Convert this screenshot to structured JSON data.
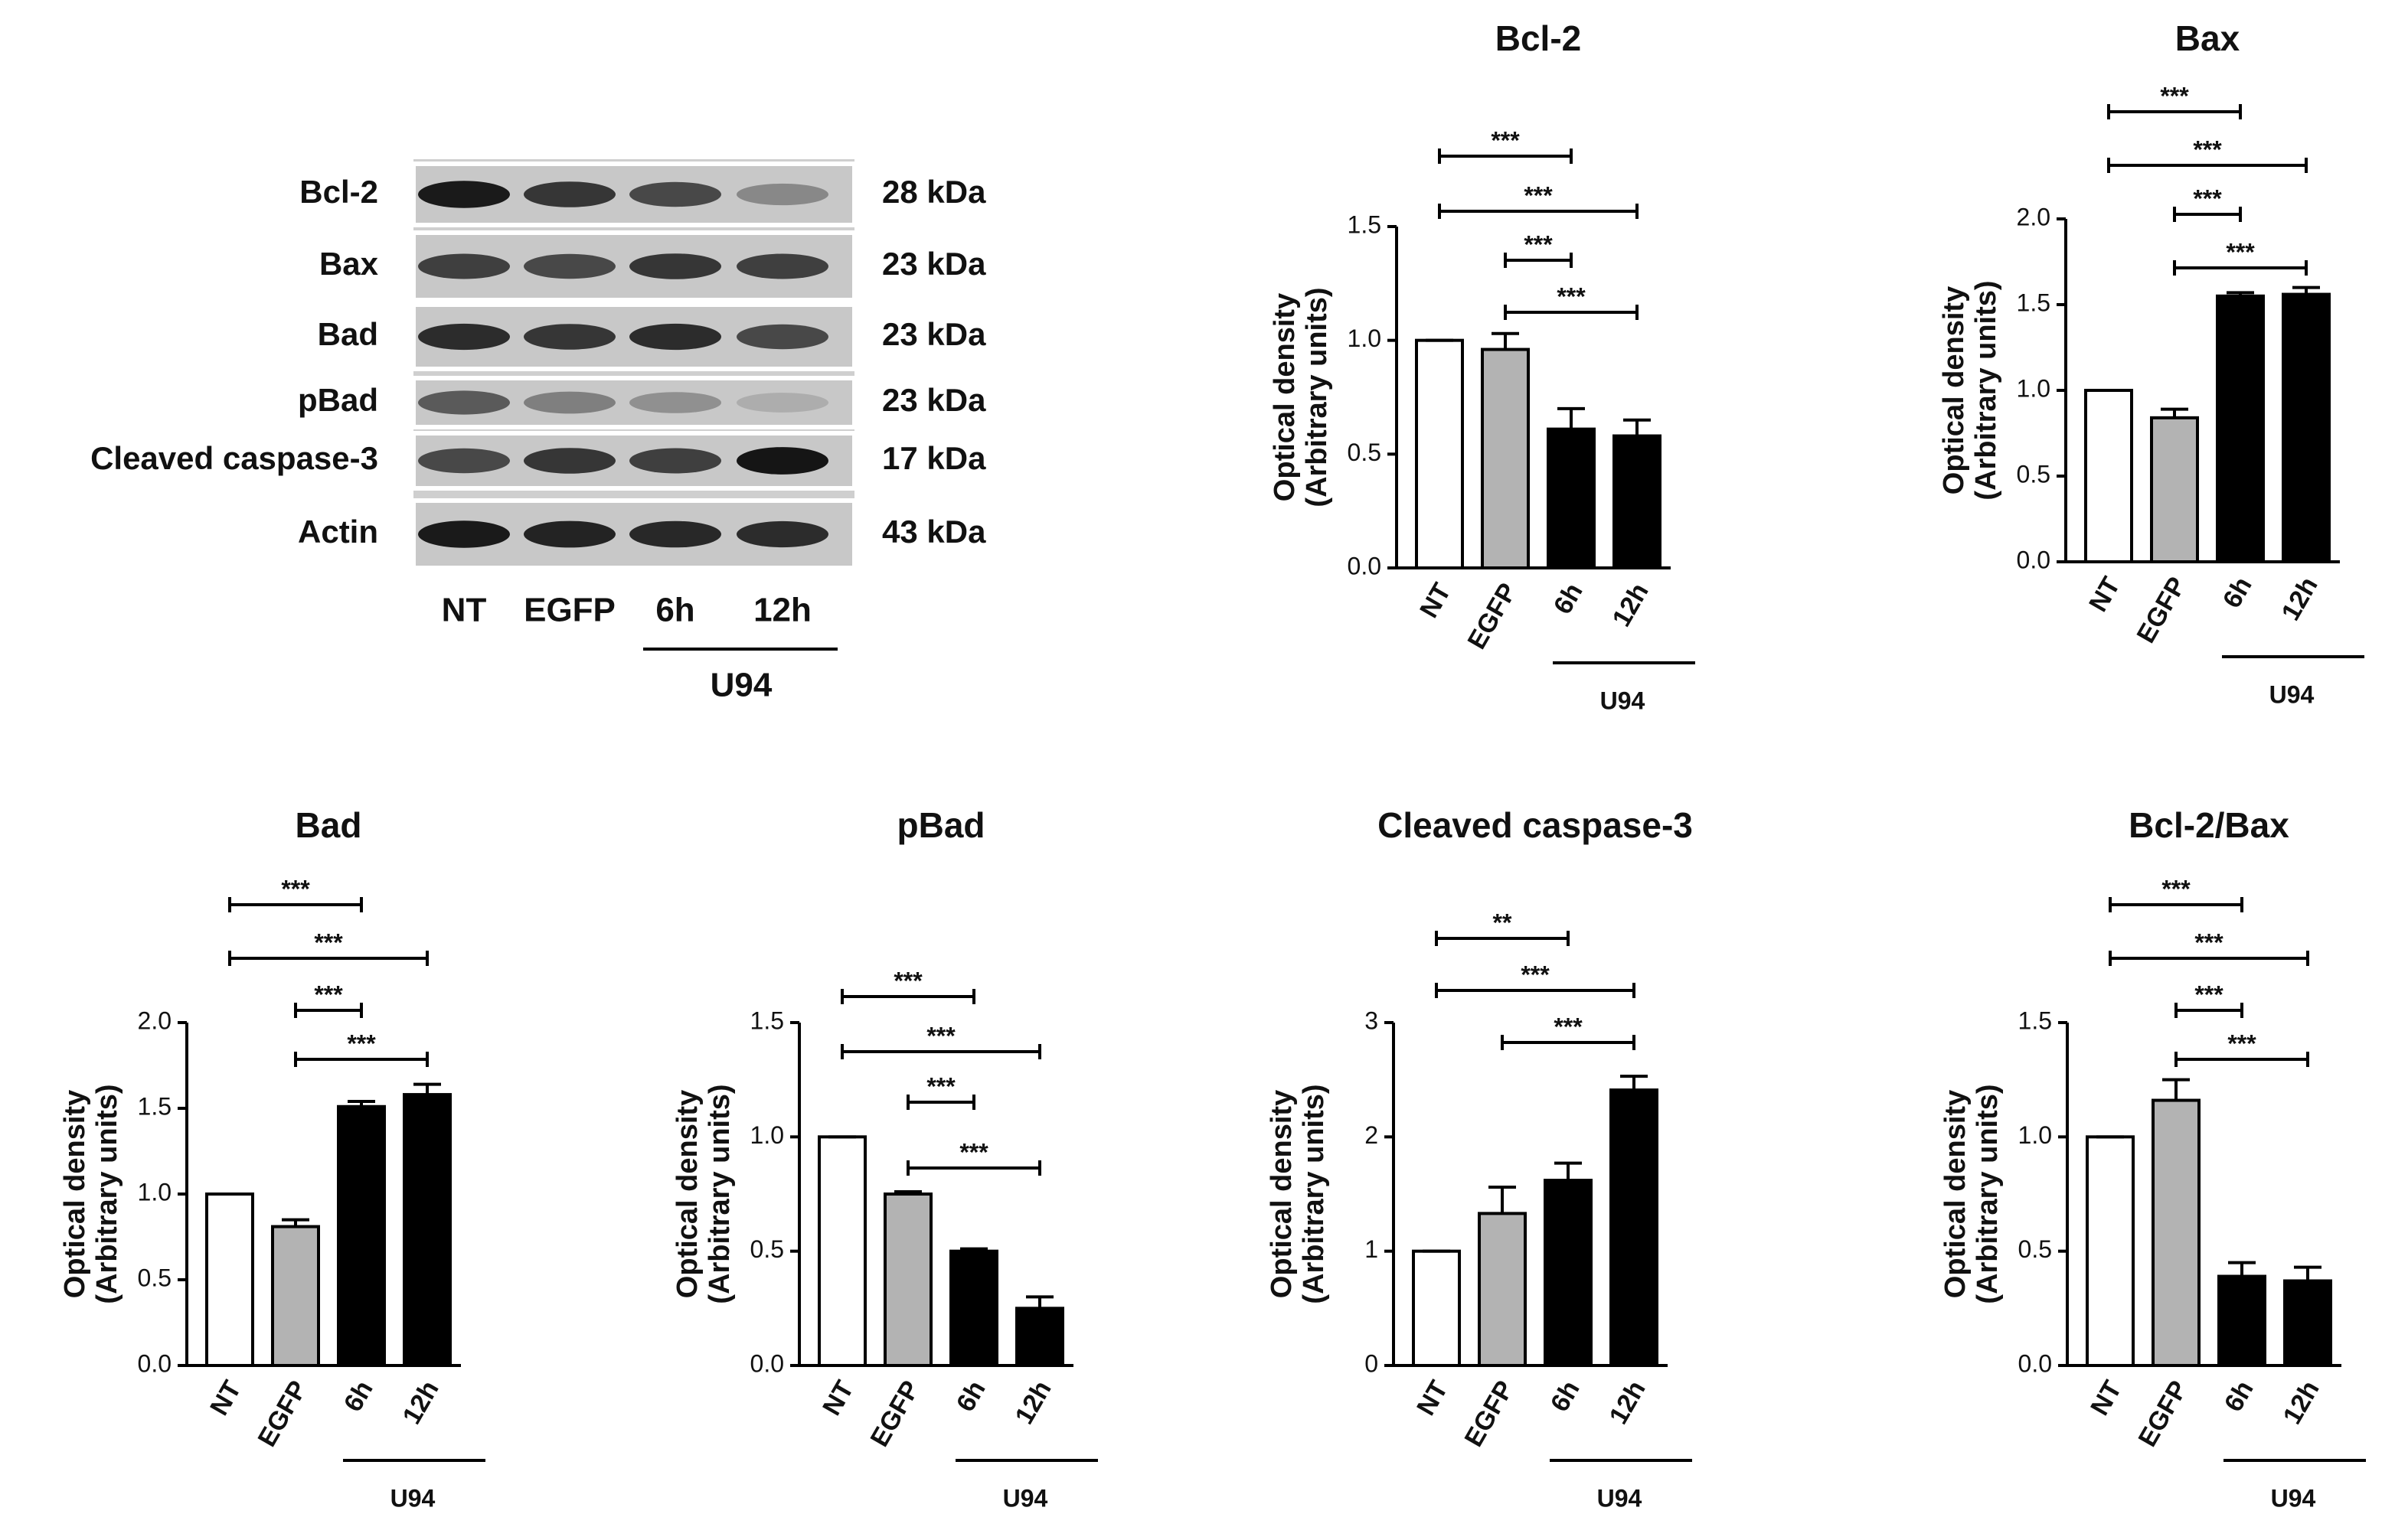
{
  "blot": {
    "rows": [
      {
        "label": "Bcl-2",
        "size": "28 kDa"
      },
      {
        "label": "Bax",
        "size": "23 kDa"
      },
      {
        "label": "Bad",
        "size": "23 kDa"
      },
      {
        "label": "pBad",
        "size": "23 kDa"
      },
      {
        "label": "Cleaved caspase-3",
        "size": "17 kDa"
      },
      {
        "label": "Actin",
        "size": "43 kDa"
      }
    ],
    "lanes": [
      "NT",
      "EGFP",
      "6h",
      "12h"
    ],
    "group": "U94"
  },
  "chart_data": [
    {
      "type": "bar",
      "title": "Bcl-2",
      "y_label": [
        "Optical density",
        "(Arbitrary units)"
      ],
      "categories": [
        "NT",
        "EGFP",
        "6h",
        "12h"
      ],
      "group": "U94",
      "values": [
        1.0,
        0.96,
        0.61,
        0.58
      ],
      "errors": [
        0,
        0.07,
        0.09,
        0.07
      ],
      "colors": [
        "#ffffff",
        "#b3b3b3",
        "#000000",
        "#000000"
      ],
      "ylim": [
        0,
        1.5
      ],
      "yticks": [
        {
          "value": 0,
          "label": "0.0"
        },
        {
          "value": 0.5,
          "label": "0.5"
        },
        {
          "value": 1,
          "label": "1.0"
        },
        {
          "value": 1.5,
          "label": "1.5"
        }
      ],
      "significance": [
        {
          "from": "NT",
          "to": "6h",
          "label": "***"
        },
        {
          "from": "NT",
          "to": "12h",
          "label": "***"
        },
        {
          "from": "EGFP",
          "to": "6h",
          "label": "***"
        },
        {
          "from": "EGFP",
          "to": "12h",
          "label": "***"
        }
      ]
    },
    {
      "type": "bar",
      "title": "Bax",
      "y_label": [
        "Optical density",
        "(Arbitrary units)"
      ],
      "categories": [
        "NT",
        "EGFP",
        "6h",
        "12h"
      ],
      "group": "U94",
      "values": [
        1.0,
        0.84,
        1.55,
        1.56
      ],
      "errors": [
        0,
        0.05,
        0.02,
        0.04
      ],
      "colors": [
        "#ffffff",
        "#b3b3b3",
        "#000000",
        "#000000"
      ],
      "ylim": [
        0,
        2
      ],
      "yticks": [
        {
          "value": 0,
          "label": "0.0"
        },
        {
          "value": 0.5,
          "label": "0.5"
        },
        {
          "value": 1,
          "label": "1.0"
        },
        {
          "value": 1.5,
          "label": "1.5"
        },
        {
          "value": 2,
          "label": "2.0"
        }
      ],
      "significance": [
        {
          "from": "NT",
          "to": "6h",
          "label": "***"
        },
        {
          "from": "NT",
          "to": "12h",
          "label": "***"
        },
        {
          "from": "EGFP",
          "to": "6h",
          "label": "***"
        },
        {
          "from": "EGFP",
          "to": "12h",
          "label": "***"
        }
      ]
    },
    {
      "type": "bar",
      "title": "Bad",
      "y_label": [
        "Optical density",
        "(Arbitrary units)"
      ],
      "categories": [
        "NT",
        "EGFP",
        "6h",
        "12h"
      ],
      "group": "U94",
      "values": [
        1.0,
        0.81,
        1.51,
        1.58
      ],
      "errors": [
        0,
        0.04,
        0.03,
        0.06
      ],
      "colors": [
        "#ffffff",
        "#b3b3b3",
        "#000000",
        "#000000"
      ],
      "ylim": [
        0,
        2
      ],
      "yticks": [
        {
          "value": 0,
          "label": "0.0"
        },
        {
          "value": 0.5,
          "label": "0.5"
        },
        {
          "value": 1,
          "label": "1.0"
        },
        {
          "value": 1.5,
          "label": "1.5"
        },
        {
          "value": 2,
          "label": "2.0"
        }
      ],
      "significance": [
        {
          "from": "NT",
          "to": "6h",
          "label": "***"
        },
        {
          "from": "NT",
          "to": "12h",
          "label": "***"
        },
        {
          "from": "EGFP",
          "to": "6h",
          "label": "***"
        },
        {
          "from": "EGFP",
          "to": "12h",
          "label": "***"
        }
      ]
    },
    {
      "type": "bar",
      "title": "pBad",
      "y_label": [
        "Optical density",
        "(Arbitrary units)"
      ],
      "categories": [
        "NT",
        "EGFP",
        "6h",
        "12h"
      ],
      "group": "U94",
      "values": [
        1.0,
        0.75,
        0.5,
        0.25
      ],
      "errors": [
        0,
        0.01,
        0.01,
        0.05
      ],
      "colors": [
        "#ffffff",
        "#b3b3b3",
        "#000000",
        "#000000"
      ],
      "ylim": [
        0,
        1.5
      ],
      "yticks": [
        {
          "value": 0,
          "label": "0.0"
        },
        {
          "value": 0.5,
          "label": "0.5"
        },
        {
          "value": 1,
          "label": "1.0"
        },
        {
          "value": 1.5,
          "label": "1.5"
        }
      ],
      "significance": [
        {
          "from": "NT",
          "to": "6h",
          "label": "***"
        },
        {
          "from": "NT",
          "to": "12h",
          "label": "***"
        },
        {
          "from": "EGFP",
          "to": "6h",
          "label": "***"
        },
        {
          "from": "EGFP",
          "to": "12h",
          "label": "***"
        }
      ]
    },
    {
      "type": "bar",
      "title": "Cleaved caspase-3",
      "y_label": [
        "Optical density",
        "(Arbitrary units)"
      ],
      "categories": [
        "NT",
        "EGFP",
        "6h",
        "12h"
      ],
      "group": "U94",
      "values": [
        1.0,
        1.33,
        1.62,
        2.41
      ],
      "errors": [
        0,
        0.23,
        0.15,
        0.12
      ],
      "colors": [
        "#ffffff",
        "#b3b3b3",
        "#000000",
        "#000000"
      ],
      "ylim": [
        0,
        3
      ],
      "yticks": [
        0,
        1,
        2,
        3
      ],
      "significance": [
        {
          "from": "NT",
          "to": "6h",
          "label": "**"
        },
        {
          "from": "NT",
          "to": "12h",
          "label": "***"
        },
        {
          "from": "EGFP",
          "to": "12h",
          "label": "***"
        }
      ]
    },
    {
      "type": "bar",
      "title": "Bcl-2/Bax",
      "y_label": [
        "Optical density",
        "(Arbitrary units)"
      ],
      "categories": [
        "NT",
        "EGFP",
        "6h",
        "12h"
      ],
      "group": "U94",
      "values": [
        1.0,
        1.16,
        0.39,
        0.37
      ],
      "errors": [
        0,
        0.09,
        0.06,
        0.06
      ],
      "colors": [
        "#ffffff",
        "#b3b3b3",
        "#000000",
        "#000000"
      ],
      "ylim": [
        0,
        1.5
      ],
      "yticks": [
        {
          "value": 0,
          "label": "0.0"
        },
        {
          "value": 0.5,
          "label": "0.5"
        },
        {
          "value": 1,
          "label": "1.0"
        },
        {
          "value": 1.5,
          "label": "1.5"
        }
      ],
      "significance": [
        {
          "from": "NT",
          "to": "6h",
          "label": "***"
        },
        {
          "from": "NT",
          "to": "12h",
          "label": "***"
        },
        {
          "from": "EGFP",
          "to": "6h",
          "label": "***"
        },
        {
          "from": "EGFP",
          "to": "12h",
          "label": "***"
        }
      ]
    }
  ]
}
